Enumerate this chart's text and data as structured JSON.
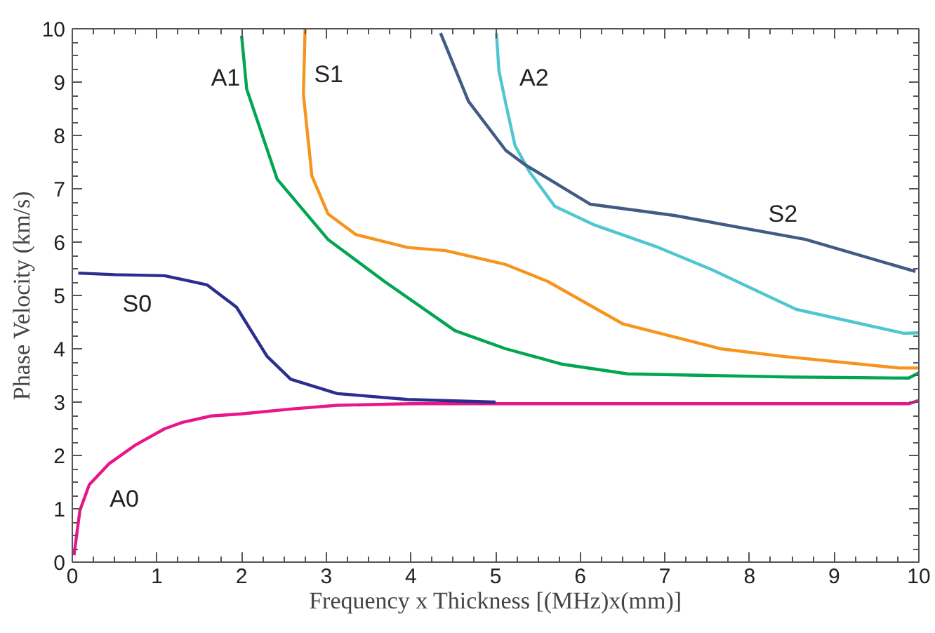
{
  "chart_data": {
    "type": "line",
    "xlabel": "Frequency x Thickness [(MHz)x(mm)]",
    "ylabel": "Phase Velocity (km/s)",
    "xlim": [
      0,
      10
    ],
    "ylim": [
      0,
      10
    ],
    "xticks": [
      0,
      1,
      2,
      3,
      4,
      5,
      6,
      7,
      8,
      9,
      10
    ],
    "yticks": [
      0,
      1,
      2,
      3,
      4,
      5,
      6,
      7,
      8,
      9,
      10
    ],
    "grid": false,
    "legend": false,
    "marker": "none",
    "line_style": "solid",
    "series": [
      {
        "name": "A0",
        "color": "#e8168a",
        "x": [
          0.02,
          0.09,
          0.2,
          0.43,
          0.75,
          1.09,
          1.3,
          1.64,
          2.0,
          2.58,
          3.13,
          4.0,
          5.0,
          6.0,
          7.0,
          8.0,
          9.0,
          9.88,
          10.0
        ],
        "values": [
          0.13,
          0.97,
          1.45,
          1.84,
          2.2,
          2.5,
          2.62,
          2.74,
          2.78,
          2.87,
          2.94,
          2.97,
          2.97,
          2.97,
          2.97,
          2.97,
          2.97,
          2.97,
          3.03
        ]
      },
      {
        "name": "S0",
        "color": "#2b2e8f",
        "x": [
          0.07,
          0.5,
          1.09,
          1.59,
          1.94,
          2.3,
          2.58,
          3.13,
          3.96,
          5.0
        ],
        "values": [
          5.42,
          5.39,
          5.37,
          5.2,
          4.78,
          3.86,
          3.43,
          3.16,
          3.05,
          3.0
        ]
      },
      {
        "name": "A1",
        "color": "#00a651",
        "x": [
          2.0,
          2.06,
          2.42,
          3.02,
          3.69,
          4.52,
          5.12,
          5.79,
          6.56,
          7.5,
          8.5,
          9.88,
          10.0
        ],
        "values": [
          9.87,
          8.87,
          7.18,
          6.05,
          5.26,
          4.34,
          4.0,
          3.71,
          3.53,
          3.5,
          3.47,
          3.45,
          3.55
        ]
      },
      {
        "name": "S1",
        "color": "#f7941d",
        "x": [
          2.75,
          2.73,
          2.83,
          3.02,
          3.35,
          3.96,
          4.41,
          5.12,
          5.62,
          6.5,
          7.66,
          8.38,
          9.77,
          10.0
        ],
        "values": [
          10.0,
          8.77,
          7.24,
          6.53,
          6.14,
          5.9,
          5.84,
          5.58,
          5.26,
          4.47,
          4.0,
          3.86,
          3.64,
          3.64
        ]
      },
      {
        "name": "A2",
        "color": "#4fc6d0",
        "x": [
          5.01,
          5.04,
          5.12,
          5.23,
          5.4,
          5.7,
          6.17,
          6.89,
          7.56,
          8.55,
          9.82,
          10.0
        ],
        "values": [
          9.92,
          9.21,
          8.6,
          7.81,
          7.32,
          6.67,
          6.32,
          5.92,
          5.48,
          4.74,
          4.29,
          4.3
        ]
      },
      {
        "name": "S2",
        "color": "#415b84",
        "x": [
          4.35,
          4.68,
          5.12,
          5.34,
          6.12,
          7.11,
          8.66,
          9.96
        ],
        "values": [
          9.92,
          8.64,
          7.72,
          7.46,
          6.71,
          6.5,
          6.05,
          5.45
        ]
      }
    ]
  }
}
